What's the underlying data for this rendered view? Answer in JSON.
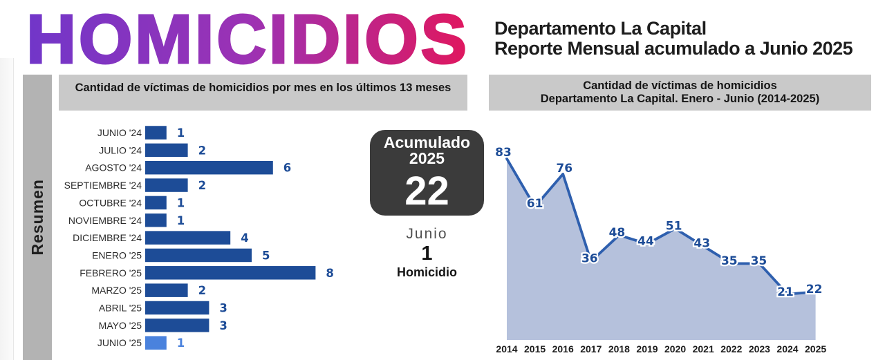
{
  "header": {
    "title": "HOMICIDIOS",
    "title_gradient": [
      "#7136c9",
      "#9c32b4",
      "#e0175e"
    ],
    "subtitle_line1": "Departamento La Capital",
    "subtitle_line2": "Reporte Mensual acumulado a Junio 2025"
  },
  "sidebar": {
    "label": "Resumen"
  },
  "accumulated": {
    "title_line1": "Acumulado",
    "title_line2": "2025",
    "value": "22",
    "month_label": "Junio",
    "month_value": "1",
    "month_unit": "Homicidio"
  },
  "chart_data": [
    {
      "type": "bar",
      "orientation": "horizontal",
      "title": "Cantidad de víctimas de homicidios por mes en los últimos 13 meses",
      "categories": [
        "JUNIO '24",
        "JULIO '24",
        "AGOSTO '24",
        "SEPTIEMBRE '24",
        "OCTUBRE '24",
        "NOVIEMBRE '24",
        "DICIEMBRE '24",
        "ENERO '25",
        "FEBRERO '25",
        "MARZO '25",
        "ABRIL '25",
        "MAYO '25",
        "JUNIO '25"
      ],
      "values": [
        1,
        2,
        6,
        2,
        1,
        1,
        4,
        5,
        8,
        2,
        3,
        3,
        1
      ],
      "xlim": [
        0,
        8
      ],
      "bar_color": "#1d4c97",
      "highlight_index": 12,
      "highlight_color": "#4a82dd",
      "label_color": "#2b2b2b"
    },
    {
      "type": "area",
      "title_line1": "Cantidad de víctimas de homicidios",
      "title_line2": "Departamento La Capital. Enero - Junio (2014-2025)",
      "x": [
        2014,
        2015,
        2016,
        2017,
        2018,
        2019,
        2020,
        2021,
        2022,
        2023,
        2024,
        2025
      ],
      "values": [
        83,
        61,
        76,
        36,
        48,
        44,
        51,
        43,
        35,
        35,
        21,
        22
      ],
      "ylim": [
        0,
        97
      ],
      "line_color": "#2e5fae",
      "fill_color": "#b5c1dc",
      "point_label_color": "#1d4c97",
      "axis_label_color": "#1c1c1c"
    }
  ]
}
